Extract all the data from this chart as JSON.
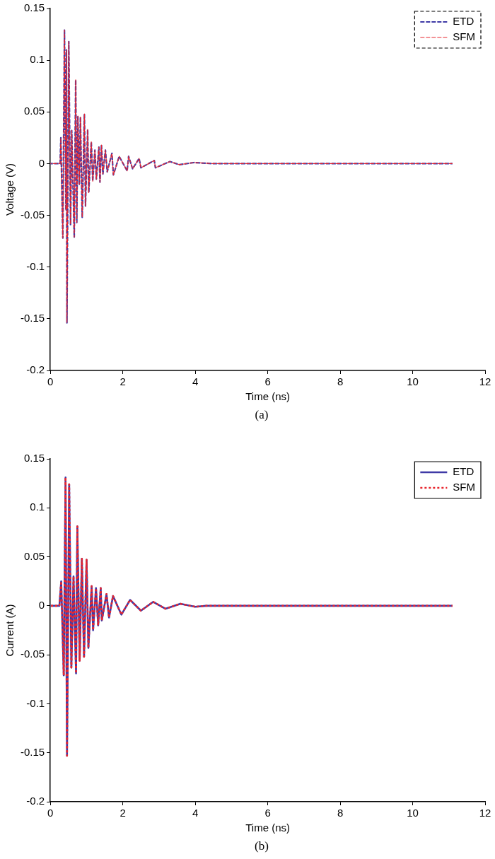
{
  "chart_data": [
    {
      "type": "line",
      "xlabel": "Time (ns)",
      "ylabel": "Voltage (V)",
      "annotations": [
        "(a)"
      ],
      "legend": "top right",
      "xlim": [
        0,
        12
      ],
      "xticks": [
        0,
        2,
        4,
        6,
        8,
        10,
        12
      ],
      "ylim": [
        -0.2,
        0.15
      ],
      "yticks": [
        -0.2,
        -0.15,
        -0.1,
        -0.05,
        0,
        0.05,
        0.1,
        0.15
      ],
      "x": [
        0,
        0.27,
        0.29,
        0.345,
        0.39,
        0.43,
        0.445,
        0.458,
        0.51,
        0.557,
        0.59,
        0.66,
        0.7,
        0.73,
        0.76,
        0.8,
        0.83,
        0.88,
        0.94,
        0.97,
        1.03,
        1.06,
        1.13,
        1.17,
        1.23,
        1.27,
        1.34,
        1.37,
        1.41,
        1.45,
        1.52,
        1.57,
        1.7,
        1.74,
        1.9,
        2.12,
        2.16,
        2.27,
        2.45,
        2.5,
        2.87,
        2.9,
        3.3,
        3.56,
        3.96,
        4.5,
        11.1
      ],
      "series": [
        {
          "name": "ETD",
          "color": "#3f3aa6",
          "line_style": "dashed",
          "values": [
            0,
            0,
            0.025,
            -0.072,
            0.129,
            -0.045,
            0.11,
            -0.154,
            0.118,
            -0.059,
            0.032,
            -0.071,
            0.081,
            -0.057,
            0.046,
            -0.02,
            0.045,
            -0.052,
            0.048,
            -0.041,
            0.033,
            -0.028,
            0.021,
            -0.017,
            0.013,
            -0.015,
            0.016,
            -0.018,
            0.018,
            -0.01,
            0.013,
            -0.008,
            0.01,
            -0.011,
            0.007,
            -0.007,
            0.007,
            -0.005,
            0.005,
            -0.004,
            0.003,
            -0.004,
            0.002,
            -0.001,
            0.001,
            0,
            0
          ]
        },
        {
          "name": "SFM",
          "color": "#e8262e",
          "line_style": "dashed",
          "values": [
            0,
            0,
            0.025,
            -0.072,
            0.129,
            -0.045,
            0.11,
            -0.154,
            0.118,
            -0.059,
            0.032,
            -0.071,
            0.081,
            -0.057,
            0.046,
            -0.02,
            0.045,
            -0.052,
            0.048,
            -0.041,
            0.033,
            -0.028,
            0.021,
            -0.017,
            0.013,
            -0.015,
            0.016,
            -0.018,
            0.018,
            -0.01,
            0.013,
            -0.008,
            0.01,
            -0.011,
            0.007,
            -0.007,
            0.007,
            -0.005,
            0.005,
            -0.004,
            0.003,
            -0.004,
            0.002,
            -0.001,
            0.001,
            0,
            0
          ]
        }
      ]
    },
    {
      "type": "line",
      "xlabel": "Time (ns)",
      "ylabel": "Current (A)",
      "annotations": [
        "(b)"
      ],
      "legend": "top right",
      "xlim": [
        0,
        12
      ],
      "xticks": [
        0,
        2,
        4,
        6,
        8,
        10,
        12
      ],
      "ylim": [
        -0.2,
        0.15
      ],
      "yticks": [
        -0.2,
        -0.15,
        -0.1,
        -0.05,
        0,
        0.05,
        0.1,
        0.15
      ],
      "x": [
        0,
        0.25,
        0.3,
        0.37,
        0.42,
        0.46,
        0.52,
        0.58,
        0.64,
        0.71,
        0.745,
        0.81,
        0.87,
        0.93,
        1.0,
        1.05,
        1.14,
        1.18,
        1.26,
        1.32,
        1.39,
        1.42,
        1.55,
        1.62,
        1.73,
        1.96,
        2.2,
        2.5,
        2.84,
        3.18,
        3.59,
        4.0,
        4.3,
        11.1
      ],
      "series": [
        {
          "name": "ETD",
          "color": "#3f3aa6",
          "line_style": "solid",
          "values": [
            0,
            0,
            0.025,
            -0.071,
            0.131,
            -0.153,
            0.124,
            -0.063,
            0.03,
            -0.069,
            0.081,
            -0.056,
            0.048,
            -0.052,
            0.047,
            -0.043,
            0.02,
            -0.025,
            0.018,
            -0.02,
            0.018,
            -0.015,
            0.012,
            -0.012,
            0.01,
            -0.009,
            0.006,
            -0.005,
            0.004,
            -0.003,
            0.002,
            -0.001,
            0,
            0
          ]
        },
        {
          "name": "SFM",
          "color": "#e8262e",
          "line_style": "dotted",
          "values": [
            0,
            0,
            0.025,
            -0.071,
            0.131,
            -0.153,
            0.124,
            -0.063,
            0.03,
            -0.069,
            0.081,
            -0.056,
            0.048,
            -0.052,
            0.047,
            -0.043,
            0.02,
            -0.025,
            0.018,
            -0.02,
            0.018,
            -0.015,
            0.012,
            -0.012,
            0.01,
            -0.009,
            0.006,
            -0.005,
            0.004,
            -0.003,
            0.002,
            -0.001,
            0,
            0
          ]
        }
      ]
    }
  ]
}
